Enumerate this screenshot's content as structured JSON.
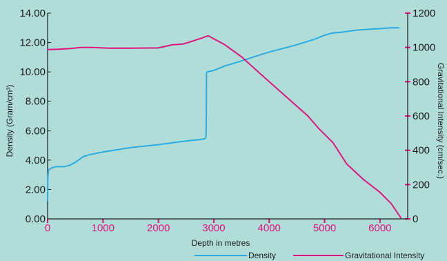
{
  "chart_data": {
    "type": "line",
    "xlabel": "Depth in metres",
    "ylabel_left": "Density (Gram/cm³)",
    "ylabel_right": "Gravitational Intensity (cm/sec.)",
    "xlim": [
      0,
      6500
    ],
    "ylim_left": [
      0,
      14
    ],
    "ylim_right": [
      0,
      1200
    ],
    "x_ticks": [
      "0",
      "1000",
      "2000",
      "3000",
      "4000",
      "5000",
      "6000"
    ],
    "y_left_ticks": [
      "0.00",
      "2.00",
      "4.00",
      "6.00",
      "8.00",
      "10.00",
      "12.00",
      "14.00"
    ],
    "y_right_ticks": [
      "0",
      "200",
      "400",
      "600",
      "800",
      "1000",
      "1200"
    ],
    "grid": false,
    "legend_position": "bottom-right",
    "colors": {
      "density": "#29abe2",
      "gravity": "#e0137f",
      "background": "#b0ddd8"
    },
    "series": [
      {
        "name": "Density",
        "axis": "left",
        "points": [
          [
            0,
            1.2
          ],
          [
            5,
            2.8
          ],
          [
            15,
            3.3
          ],
          [
            60,
            3.45
          ],
          [
            150,
            3.55
          ],
          [
            300,
            3.55
          ],
          [
            400,
            3.65
          ],
          [
            500,
            3.85
          ],
          [
            650,
            4.25
          ],
          [
            800,
            4.4
          ],
          [
            1000,
            4.55
          ],
          [
            1500,
            4.85
          ],
          [
            2000,
            5.05
          ],
          [
            2500,
            5.3
          ],
          [
            2750,
            5.4
          ],
          [
            2840,
            5.45
          ],
          [
            2860,
            5.6
          ],
          [
            2865,
            7.0
          ],
          [
            2868,
            9.9
          ],
          [
            2880,
            10.0
          ],
          [
            3000,
            10.1
          ],
          [
            3200,
            10.4
          ],
          [
            3500,
            10.75
          ],
          [
            3700,
            11.0
          ],
          [
            4000,
            11.35
          ],
          [
            4500,
            11.85
          ],
          [
            4800,
            12.2
          ],
          [
            5000,
            12.5
          ],
          [
            5150,
            12.65
          ],
          [
            5300,
            12.7
          ],
          [
            5600,
            12.85
          ],
          [
            6000,
            12.95
          ],
          [
            6200,
            13.0
          ],
          [
            6350,
            13.0
          ]
        ]
      },
      {
        "name": "Gravitational Intensity",
        "axis": "right",
        "points": [
          [
            0,
            987
          ],
          [
            200,
            990
          ],
          [
            400,
            993
          ],
          [
            600,
            1000
          ],
          [
            800,
            1000
          ],
          [
            1100,
            996
          ],
          [
            1500,
            996
          ],
          [
            2000,
            997
          ],
          [
            2250,
            1015
          ],
          [
            2450,
            1020
          ],
          [
            2650,
            1040
          ],
          [
            2900,
            1068
          ],
          [
            3200,
            1015
          ],
          [
            3500,
            945
          ],
          [
            4000,
            800
          ],
          [
            4700,
            600
          ],
          [
            4900,
            525
          ],
          [
            5150,
            445
          ],
          [
            5400,
            320
          ],
          [
            5700,
            230
          ],
          [
            6000,
            155
          ],
          [
            6200,
            90
          ],
          [
            6380,
            5
          ]
        ]
      }
    ]
  }
}
